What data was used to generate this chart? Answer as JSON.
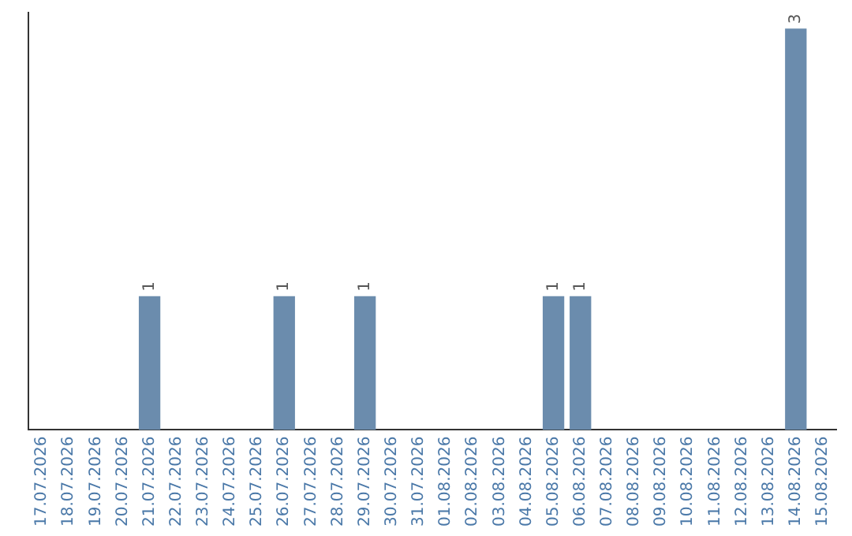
{
  "chart_data": {
    "type": "bar",
    "categories": [
      "17.07.2026",
      "18.07.2026",
      "19.07.2026",
      "20.07.2026",
      "21.07.2026",
      "22.07.2026",
      "23.07.2026",
      "24.07.2026",
      "25.07.2026",
      "26.07.2026",
      "27.07.2026",
      "28.07.2026",
      "29.07.2026",
      "30.07.2026",
      "31.07.2026",
      "01.08.2026",
      "02.08.2026",
      "03.08.2026",
      "04.08.2026",
      "05.08.2026",
      "06.08.2026",
      "07.08.2026",
      "08.08.2026",
      "09.08.2026",
      "10.08.2026",
      "11.08.2026",
      "12.08.2026",
      "13.08.2026",
      "14.08.2026",
      "15.08.2026"
    ],
    "values": [
      0,
      0,
      0,
      0,
      1,
      0,
      0,
      0,
      0,
      1,
      0,
      0,
      1,
      0,
      0,
      0,
      0,
      0,
      0,
      1,
      1,
      0,
      0,
      0,
      0,
      0,
      0,
      0,
      3,
      0
    ],
    "value_labels": [
      null,
      null,
      null,
      null,
      "1",
      null,
      null,
      null,
      null,
      "1",
      null,
      null,
      "1",
      null,
      null,
      null,
      null,
      null,
      null,
      "1",
      "1",
      null,
      null,
      null,
      null,
      null,
      null,
      null,
      "3",
      null
    ],
    "color": "#6b8cad",
    "relative": false,
    "grid": false,
    "legend": false
  }
}
